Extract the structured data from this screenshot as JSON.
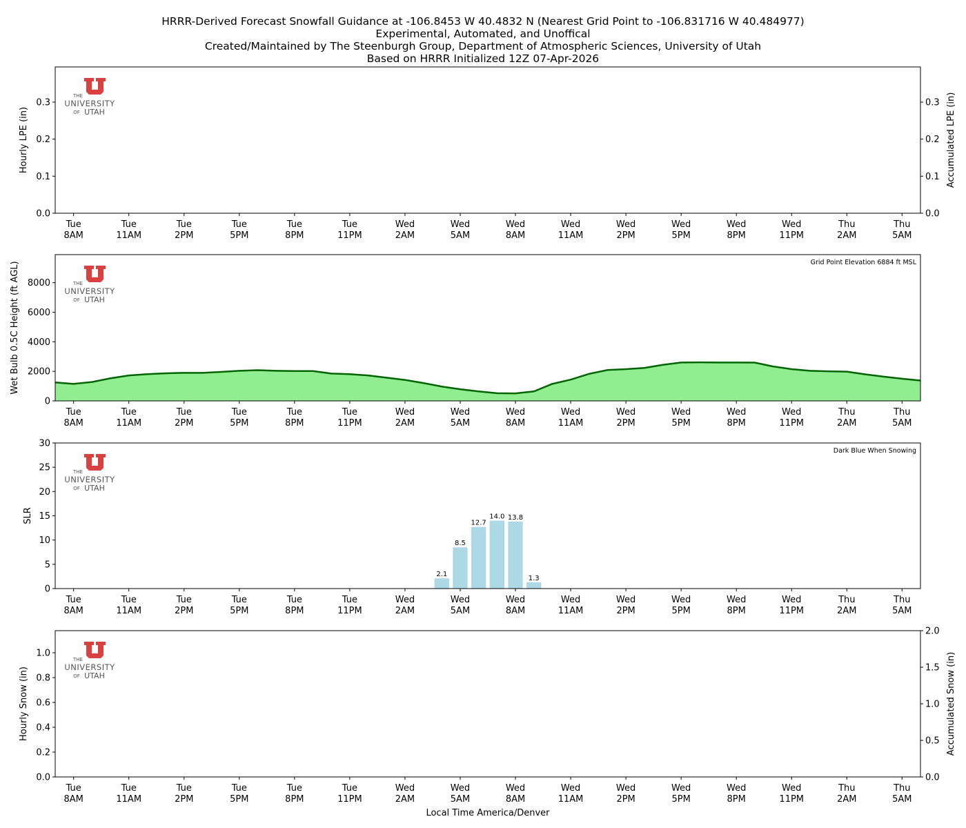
{
  "title_lines": [
    "HRRR-Derived Forecast Snowfall Guidance at -106.8453 W 40.4832 N (Nearest Grid Point to -106.831716 W 40.484977)",
    "Experimental, Automated, and Unoffical",
    "Created/Maintained by The Steenburgh Group, Department of Atmospheric Sciences, University of Utah",
    "Based on HRRR Initialized 12Z 07-Apr-2026"
  ],
  "logo": {
    "line1": "THE",
    "line2": "UNIVERSITY",
    "line3a": "OF",
    "line3b": "UTAH",
    "color": "#d94141"
  },
  "xlabel": "Local Time America/Denver",
  "hours": [
    "Tue 7AM",
    "Tue 8AM",
    "Tue 9AM",
    "Tue 10AM",
    "Tue 11AM",
    "Tue 12PM",
    "Tue 1PM",
    "Tue 2PM",
    "Tue 3PM",
    "Tue 4PM",
    "Tue 5PM",
    "Tue 6PM",
    "Tue 7PM",
    "Tue 8PM",
    "Tue 9PM",
    "Tue 10PM",
    "Tue 11PM",
    "Wed 12AM",
    "Wed 1AM",
    "Wed 2AM",
    "Wed 3AM",
    "Wed 4AM",
    "Wed 5AM",
    "Wed 6AM",
    "Wed 7AM",
    "Wed 8AM",
    "Wed 9AM",
    "Wed 10AM",
    "Wed 11AM",
    "Wed 12PM",
    "Wed 1PM",
    "Wed 2PM",
    "Wed 3PM",
    "Wed 4PM",
    "Wed 5PM",
    "Wed 6PM",
    "Wed 7PM",
    "Wed 8PM",
    "Wed 9PM",
    "Wed 10PM",
    "Wed 11PM",
    "Thu 12AM",
    "Thu 1AM",
    "Thu 2AM",
    "Thu 3AM",
    "Thu 4AM",
    "Thu 5AM",
    "Thu 6AM"
  ],
  "xticks": [
    {
      "day": "Tue",
      "time": "8AM"
    },
    {
      "day": "Tue",
      "time": "11AM"
    },
    {
      "day": "Tue",
      "time": "2PM"
    },
    {
      "day": "Tue",
      "time": "5PM"
    },
    {
      "day": "Tue",
      "time": "8PM"
    },
    {
      "day": "Tue",
      "time": "11PM"
    },
    {
      "day": "Wed",
      "time": "2AM"
    },
    {
      "day": "Wed",
      "time": "5AM"
    },
    {
      "day": "Wed",
      "time": "8AM"
    },
    {
      "day": "Wed",
      "time": "11AM"
    },
    {
      "day": "Wed",
      "time": "2PM"
    },
    {
      "day": "Wed",
      "time": "5PM"
    },
    {
      "day": "Wed",
      "time": "8PM"
    },
    {
      "day": "Wed",
      "time": "11PM"
    },
    {
      "day": "Thu",
      "time": "2AM"
    },
    {
      "day": "Thu",
      "time": "5AM"
    }
  ],
  "chart_data": [
    {
      "type": "bar",
      "ylabel": "Hourly LPE (in)",
      "ylabel_right": "Accumulated LPE (in)",
      "ylim": [
        0,
        0.395
      ],
      "ylim_right": [
        0,
        0.395
      ],
      "yticks": [
        "0.0",
        "0.1",
        "0.2",
        "0.3"
      ],
      "yticks_values": [
        0,
        0.1,
        0.2,
        0.3
      ],
      "yticks_right": [
        "0.0",
        "0.1",
        "0.2",
        "0.3"
      ],
      "hourly": [],
      "accumulated": [],
      "annotation": ""
    },
    {
      "type": "area",
      "ylabel": "Wet Bulb 0.5C Height (ft AGL)",
      "ylim": [
        0,
        9900
      ],
      "yticks": [
        "0",
        "2000",
        "4000",
        "6000",
        "8000"
      ],
      "yticks_values": [
        0,
        2000,
        4000,
        6000,
        8000
      ],
      "annotation": "Grid Point Elevation 6884 ft MSL",
      "fill_color": "#90ee90",
      "line_color": "#006400",
      "values": [
        1250,
        1150,
        1280,
        1530,
        1720,
        1810,
        1870,
        1900,
        1900,
        1960,
        2040,
        2080,
        2040,
        2020,
        2020,
        1850,
        1810,
        1720,
        1570,
        1420,
        1210,
        970,
        790,
        640,
        520,
        510,
        640,
        1150,
        1440,
        1830,
        2090,
        2150,
        2230,
        2440,
        2600,
        2610,
        2600,
        2600,
        2590,
        2330,
        2150,
        2040,
        2000,
        1980,
        1800,
        1640,
        1500,
        1380
      ]
    },
    {
      "type": "bar",
      "ylabel": "SLR",
      "ylim": [
        0,
        30
      ],
      "yticks": [
        "0",
        "5",
        "10",
        "15",
        "20",
        "25",
        "30"
      ],
      "yticks_values": [
        0,
        5,
        10,
        15,
        20,
        25,
        30
      ],
      "annotation": "Dark Blue When Snowing",
      "bar_color": "#add8e6",
      "snow_color": "#00008b",
      "bars": [
        {
          "hour": "Wed 4AM",
          "value": 2.1,
          "label": "2.1"
        },
        {
          "hour": "Wed 5AM",
          "value": 8.5,
          "label": "8.5"
        },
        {
          "hour": "Wed 6AM",
          "value": 12.7,
          "label": "12.7"
        },
        {
          "hour": "Wed 7AM",
          "value": 14.0,
          "label": "14.0"
        },
        {
          "hour": "Wed 8AM",
          "value": 13.8,
          "label": "13.8"
        },
        {
          "hour": "Wed 9AM",
          "value": 1.3,
          "label": "1.3"
        }
      ]
    },
    {
      "type": "bar",
      "ylabel": "Hourly Snow (in)",
      "ylabel_right": "Accumulated Snow (in)",
      "ylim": [
        0,
        1.178
      ],
      "ylim_right": [
        0,
        2.0
      ],
      "yticks": [
        "0.0",
        "0.2",
        "0.4",
        "0.6",
        "0.8",
        "1.0"
      ],
      "yticks_values": [
        0,
        0.2,
        0.4,
        0.6,
        0.8,
        1.0
      ],
      "yticks_right": [
        "0.0",
        "0.5",
        "1.0",
        "1.5",
        "2.0"
      ],
      "yticks_right_values": [
        0,
        0.5,
        1.0,
        1.5,
        2.0
      ],
      "hourly": [],
      "accumulated": [],
      "annotation": ""
    }
  ]
}
